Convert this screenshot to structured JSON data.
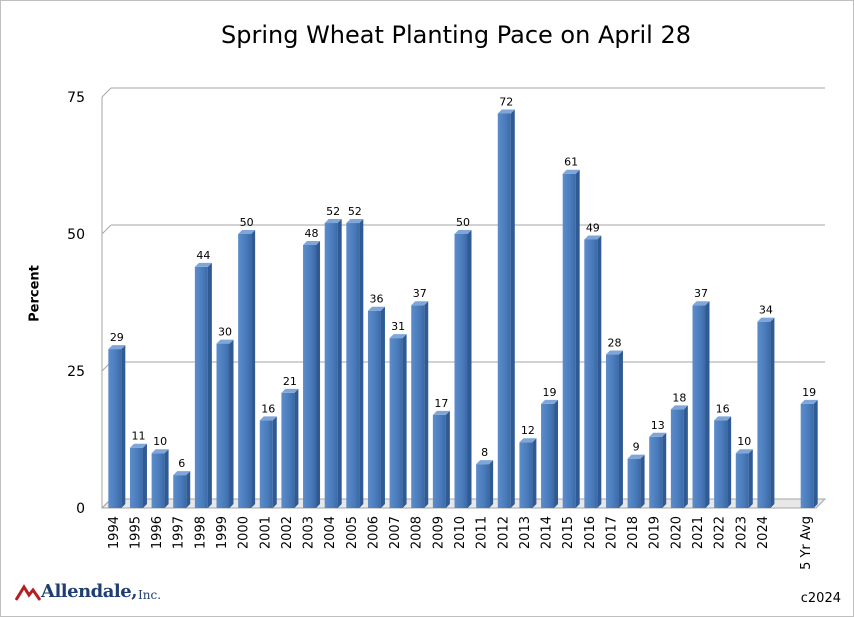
{
  "chart_data": {
    "type": "bar",
    "title": "Spring Wheat Planting Pace on April 28",
    "xlabel": "",
    "ylabel": "Percent",
    "ylim": [
      0,
      75
    ],
    "yticks": [
      0,
      25,
      50,
      75
    ],
    "grid": true,
    "legend": "none",
    "categories": [
      "1994",
      "1995",
      "1996",
      "1997",
      "1998",
      "1999",
      "2000",
      "2001",
      "2002",
      "2003",
      "2004",
      "2005",
      "2006",
      "2007",
      "2008",
      "2009",
      "2010",
      "2011",
      "2012",
      "2013",
      "2014",
      "2015",
      "2016",
      "2017",
      "2018",
      "2019",
      "2020",
      "2021",
      "2022",
      "2023",
      "2024",
      "",
      "5 Yr Avg"
    ],
    "values": [
      29,
      11,
      10,
      6,
      44,
      30,
      50,
      16,
      21,
      48,
      52,
      52,
      36,
      31,
      37,
      17,
      50,
      8,
      72,
      12,
      19,
      61,
      49,
      28,
      9,
      13,
      18,
      37,
      16,
      10,
      34,
      null,
      19
    ],
    "bar_color": "#4f81bd"
  },
  "footer": {
    "logo_text": "Allendale,",
    "logo_suffix": "Inc.",
    "copyright": "c2024"
  }
}
